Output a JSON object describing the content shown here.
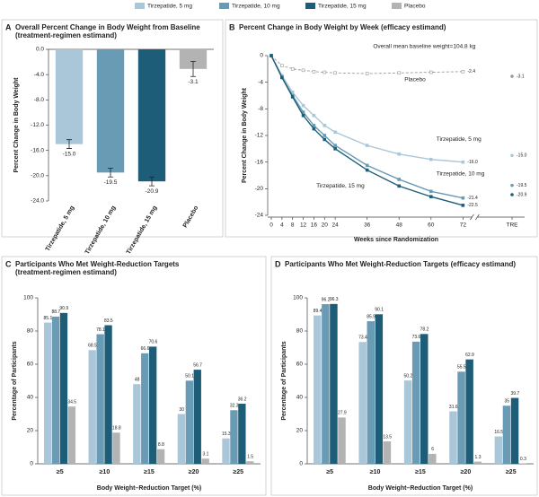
{
  "legend": [
    {
      "name": "Tirzepatide, 5 mg",
      "color": "#a9c7d8"
    },
    {
      "name": "Tirzepatide, 10 mg",
      "color": "#6a9bb5"
    },
    {
      "name": "Tirzepatide, 15 mg",
      "color": "#1d5d78"
    },
    {
      "name": "Placebo",
      "color": "#b3b3b3"
    }
  ],
  "chart_data": [
    {
      "type": "bar",
      "panel": "A",
      "title": "Overall Percent Change in Body Weight from Baseline",
      "subtitle": "(treatment-regimen estimand)",
      "ylabel": "Percent Change in Body Weight",
      "categories": [
        "Tirzepatide, 5 mg",
        "Tirzepatide, 10 mg",
        "Tirzepatide, 15 mg",
        "Placebo"
      ],
      "values": [
        -15.0,
        -19.5,
        -20.9,
        -3.1
      ],
      "value_labels": [
        "-15.0",
        "-19.5",
        "-20.9",
        "-3.1"
      ],
      "errors": [
        0.7,
        0.7,
        0.7,
        1.2
      ],
      "colors": [
        "#a9c7d8",
        "#6a9bb5",
        "#1d5d78",
        "#b3b3b3"
      ],
      "ylim": [
        -24,
        0
      ],
      "yticks": [
        {
          "value": 0,
          "label": "0.0"
        },
        {
          "value": -4,
          "label": "-4.0"
        },
        {
          "value": -8,
          "label": "-8.0"
        },
        {
          "value": -12,
          "label": "-12.0"
        },
        {
          "value": -16,
          "label": "-16.0"
        },
        {
          "value": -20,
          "label": "-20.0"
        },
        {
          "value": -24,
          "label": "-24.0"
        }
      ]
    },
    {
      "type": "line",
      "panel": "B",
      "title": "Percent Change in Body Weight by Week (efficacy estimand)",
      "annotation": "Overall mean baseline weight=104.8 kg",
      "xlabel": "Weeks since Randomization",
      "ylabel": "Percent Change in Body Weight",
      "x": [
        0,
        4,
        8,
        12,
        16,
        20,
        24,
        36,
        48,
        60,
        72
      ],
      "xlim": [
        0,
        72
      ],
      "xticks": [
        0,
        4,
        8,
        12,
        16,
        20,
        24,
        36,
        48,
        60,
        72
      ],
      "extra_xtick": "TRE",
      "ylim": [
        -24,
        0
      ],
      "yticks": [
        0,
        -4,
        -8,
        -12,
        -16,
        -20,
        -24
      ],
      "series": [
        {
          "name": "Placebo",
          "color": "#9a9a9a",
          "dashed": true,
          "values": [
            0,
            -1.5,
            -2.0,
            -2.2,
            -2.4,
            -2.5,
            -2.6,
            -2.7,
            -2.6,
            -2.5,
            -2.4
          ],
          "end_label": "-2.4",
          "tre_value": -3.1,
          "tre_label": "-3.1"
        },
        {
          "name": "Tirzepatide, 5 mg",
          "color": "#a9c7d8",
          "values": [
            0,
            -3.0,
            -5.5,
            -7.5,
            -9.0,
            -10.5,
            -11.5,
            -13.5,
            -14.8,
            -15.6,
            -16.0
          ],
          "end_label": "-16.0",
          "tre_value": -15.0,
          "tre_label": "-15.0"
        },
        {
          "name": "Tirzepatide, 10 mg",
          "color": "#6a9bb5",
          "values": [
            0,
            -3.2,
            -6.0,
            -8.5,
            -10.5,
            -12.0,
            -13.5,
            -16.5,
            -18.6,
            -20.4,
            -21.4
          ],
          "end_label": "-21.4",
          "tre_value": -19.5,
          "tre_label": "-19.5"
        },
        {
          "name": "Tirzepatide, 15 mg",
          "color": "#1d5d78",
          "values": [
            0,
            -3.3,
            -6.2,
            -9.0,
            -11.0,
            -12.6,
            -14.0,
            -17.2,
            -19.6,
            -21.2,
            -22.5
          ],
          "end_label": "-22.5",
          "tre_value": -20.9,
          "tre_label": "-20.9"
        }
      ]
    },
    {
      "type": "grouped_bar",
      "panel": "C",
      "title": "Participants Who Met Weight-Reduction Targets",
      "subtitle": "(treatment-regimen estimand)",
      "xlabel": "Body Weight–Reduction Target (%)",
      "ylabel": "Percentage of Participants",
      "categories": [
        "≥5",
        "≥10",
        "≥15",
        "≥20",
        "≥25"
      ],
      "ylim": [
        0,
        100
      ],
      "yticks": [
        0,
        20,
        40,
        60,
        80,
        100
      ],
      "series": [
        {
          "name": "Tirzepatide, 5 mg",
          "color": "#a9c7d8",
          "values": [
            85.1,
            68.5,
            48.0,
            30.0,
            15.3
          ]
        },
        {
          "name": "Tirzepatide, 10 mg",
          "color": "#6a9bb5",
          "values": [
            88.7,
            78.1,
            66.6,
            50.1,
            32.3
          ]
        },
        {
          "name": "Tirzepatide, 15 mg",
          "color": "#1d5d78",
          "values": [
            90.9,
            83.5,
            70.6,
            56.7,
            36.2
          ]
        },
        {
          "name": "Placebo",
          "color": "#b3b3b3",
          "values": [
            34.5,
            18.8,
            8.8,
            3.1,
            1.5
          ]
        }
      ]
    },
    {
      "type": "grouped_bar",
      "panel": "D",
      "title": "Participants Who Met Weight-Reduction Targets (efficacy estimand)",
      "xlabel": "Body Weight–Reduction Target (%)",
      "ylabel": "Percentage of Participants",
      "categories": [
        "≥5",
        "≥10",
        "≥15",
        "≥20",
        "≥25"
      ],
      "ylim": [
        0,
        100
      ],
      "yticks": [
        0,
        20,
        40,
        60,
        80,
        100
      ],
      "series": [
        {
          "name": "Tirzepatide, 5 mg",
          "color": "#a9c7d8",
          "values": [
            89.4,
            73.4,
            50.2,
            31.6,
            16.5
          ]
        },
        {
          "name": "Tirzepatide, 10 mg",
          "color": "#6a9bb5",
          "values": [
            96.2,
            85.9,
            73.6,
            55.5,
            35.0
          ]
        },
        {
          "name": "Tirzepatide, 15 mg",
          "color": "#1d5d78",
          "values": [
            96.3,
            90.1,
            78.2,
            62.9,
            39.7
          ]
        },
        {
          "name": "Placebo",
          "color": "#b3b3b3",
          "values": [
            27.9,
            13.5,
            6.0,
            1.3,
            0.3
          ]
        }
      ]
    }
  ]
}
